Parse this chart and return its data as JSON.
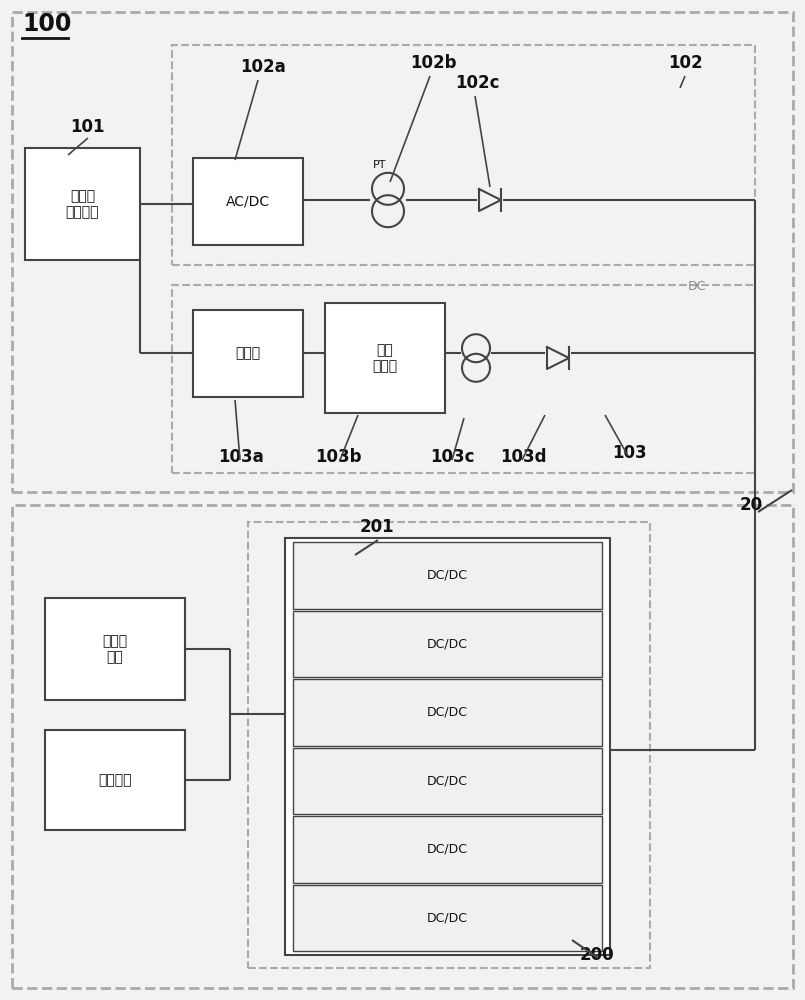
{
  "bg_color": "#f2f2f2",
  "dashed_color": "#aaaaaa",
  "solid_color": "#444444",
  "line_color": "#444444",
  "box_edge": "#444444",
  "box_fill": "#ffffff",
  "label_color": "#111111",
  "gray_text": "#888888",
  "label_100": "100",
  "label_101": "101",
  "label_102": "102",
  "label_102a": "102a",
  "label_102b": "102b",
  "label_102c": "102c",
  "label_103": "103",
  "label_103a": "103a",
  "label_103b": "103b",
  "label_103c": "103c",
  "label_103d": "103d",
  "label_20": "20",
  "label_200": "200",
  "label_201": "201",
  "text_acdc": "AC/DC",
  "text_charger": "充电器",
  "text_battery": "蓄电\n电池组",
  "text_ac_source": "交流电\n产生设备",
  "text_dc": "DC",
  "text_pt": "PT",
  "text_uav_body": "无人机\n本体",
  "text_onboard": "机载设备",
  "text_dcdc": "DC/DC",
  "n_dcdc": 6
}
